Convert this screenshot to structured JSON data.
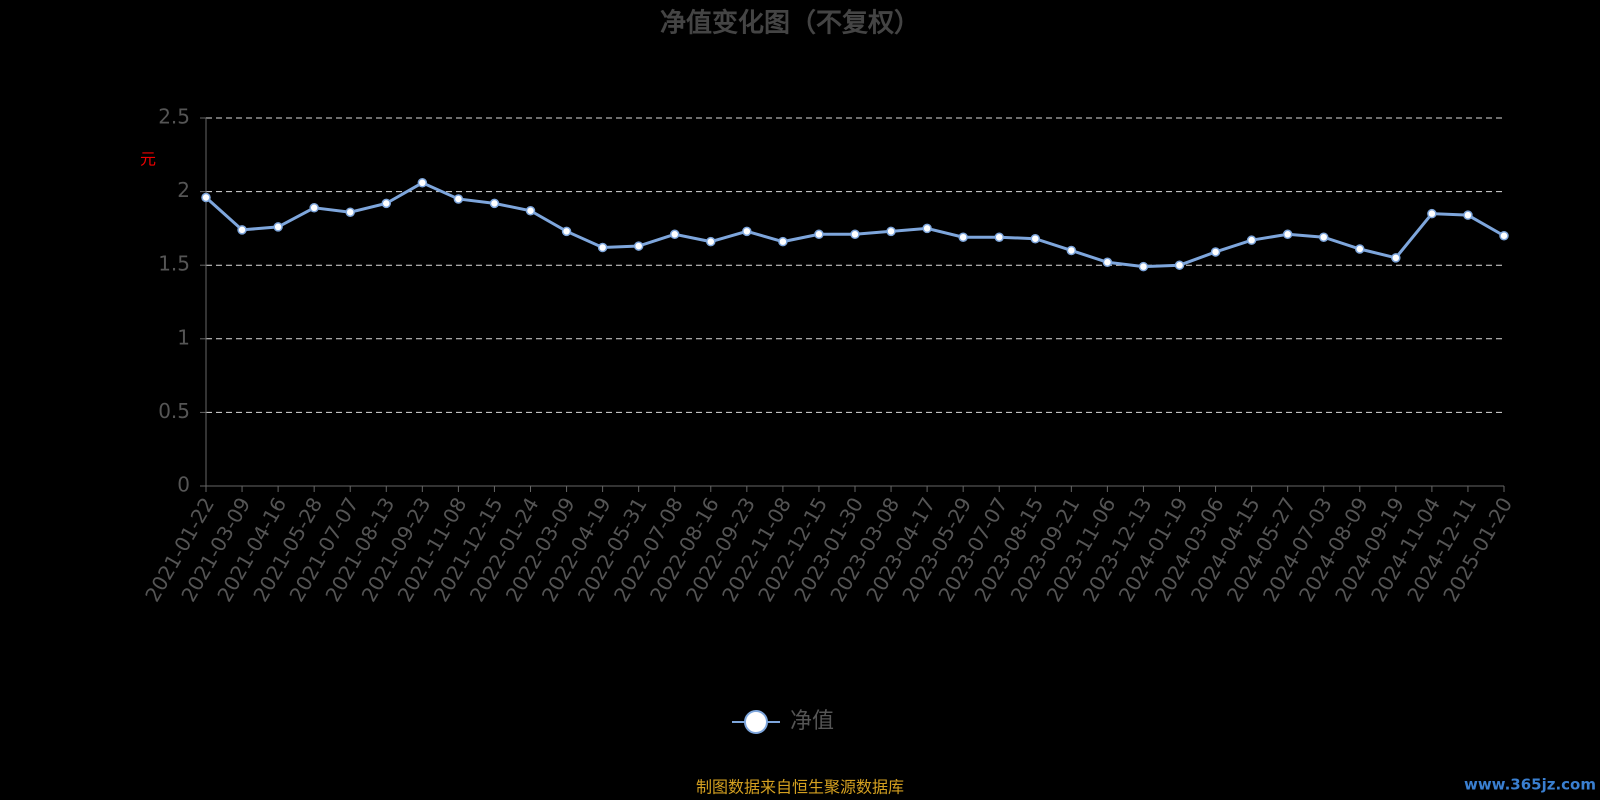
{
  "chart_data": {
    "type": "line",
    "title": "净值变化图（不复权）",
    "y_label": "元",
    "categories": [
      "2021-01-22",
      "2021-03-09",
      "2021-04-16",
      "2021-05-28",
      "2021-07-07",
      "2021-08-13",
      "2021-09-23",
      "2021-11-08",
      "2021-12-15",
      "2022-01-24",
      "2022-03-09",
      "2022-04-19",
      "2022-05-31",
      "2022-07-08",
      "2022-08-16",
      "2022-09-23",
      "2022-11-08",
      "2022-12-15",
      "2023-01-30",
      "2023-03-08",
      "2023-04-17",
      "2023-05-29",
      "2023-07-07",
      "2023-08-15",
      "2023-09-21",
      "2023-11-06",
      "2023-12-13",
      "2024-01-19",
      "2024-03-06",
      "2024-04-15",
      "2024-05-27",
      "2024-07-03",
      "2024-08-09",
      "2024-09-19",
      "2024-11-04",
      "2024-12-11",
      "2025-01-20"
    ],
    "series": [
      {
        "name": "净值",
        "color": "#7ea6dc",
        "values": [
          1.96,
          1.74,
          1.76,
          1.89,
          1.86,
          1.92,
          2.06,
          1.95,
          1.92,
          1.87,
          1.73,
          1.62,
          1.63,
          1.71,
          1.66,
          1.73,
          1.66,
          1.71,
          1.71,
          1.73,
          1.75,
          1.69,
          1.69,
          1.68,
          1.6,
          1.52,
          1.49,
          1.5,
          1.59,
          1.67,
          1.71,
          1.69,
          1.61,
          1.55,
          1.85,
          1.84,
          1.7
        ]
      }
    ],
    "ylim": [
      0,
      2.5
    ],
    "yticks": [
      0,
      0.5,
      1,
      1.5,
      2,
      2.5
    ],
    "grid": true,
    "source": "制图数据来自恒生聚源数据库",
    "watermark": "www.365jz.com"
  }
}
